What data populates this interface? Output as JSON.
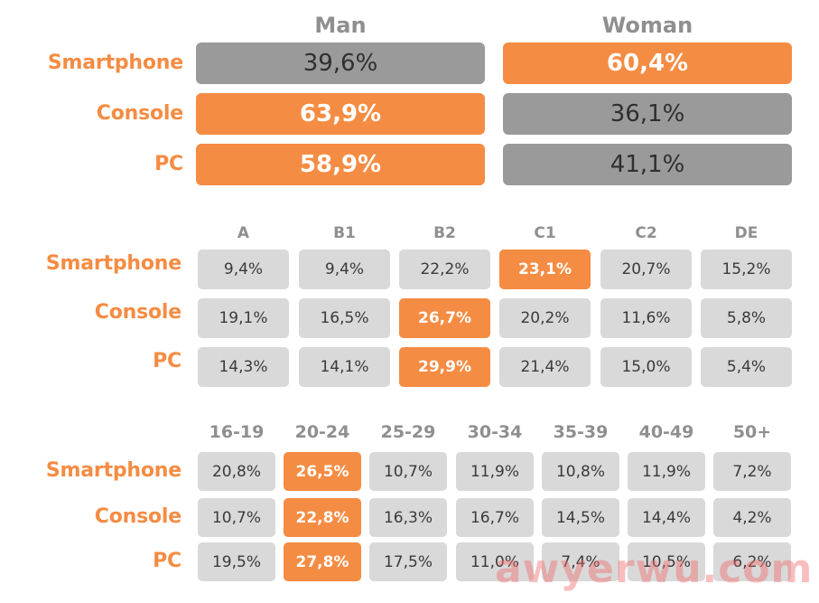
{
  "chart_data": [
    {
      "type": "table",
      "columns": [
        "Man",
        "Woman"
      ],
      "rows": [
        {
          "label": "Smartphone",
          "values": [
            "39,6%",
            "60,4%"
          ],
          "highlight": [
            false,
            true
          ]
        },
        {
          "label": "Console",
          "values": [
            "63,9%",
            "36,1%"
          ],
          "highlight": [
            true,
            false
          ]
        },
        {
          "label": "PC",
          "values": [
            "58,9%",
            "41,1%"
          ],
          "highlight": [
            true,
            false
          ]
        }
      ]
    },
    {
      "type": "table",
      "columns": [
        "A",
        "B1",
        "B2",
        "C1",
        "C2",
        "DE"
      ],
      "rows": [
        {
          "label": "Smartphone",
          "values": [
            "9,4%",
            "9,4%",
            "22,2%",
            "23,1%",
            "20,7%",
            "15,2%"
          ],
          "highlight": [
            false,
            false,
            false,
            true,
            false,
            false
          ]
        },
        {
          "label": "Console",
          "values": [
            "19,1%",
            "16,5%",
            "26,7%",
            "20,2%",
            "11,6%",
            "5,8%"
          ],
          "highlight": [
            false,
            false,
            true,
            false,
            false,
            false
          ]
        },
        {
          "label": "PC",
          "values": [
            "14,3%",
            "14,1%",
            "29,9%",
            "21,4%",
            "15,0%",
            "5,4%"
          ],
          "highlight": [
            false,
            false,
            true,
            false,
            false,
            false
          ]
        }
      ]
    },
    {
      "type": "table",
      "columns": [
        "16-19",
        "20-24",
        "25-29",
        "30-34",
        "35-39",
        "40-49",
        "50+"
      ],
      "rows": [
        {
          "label": "Smartphone",
          "values": [
            "20,8%",
            "26,5%",
            "10,7%",
            "11,9%",
            "10,8%",
            "11,9%",
            "7,2%"
          ],
          "highlight": [
            false,
            true,
            false,
            false,
            false,
            false,
            false
          ]
        },
        {
          "label": "Console",
          "values": [
            "10,7%",
            "22,8%",
            "16,3%",
            "16,7%",
            "14,5%",
            "14,4%",
            "4,2%"
          ],
          "highlight": [
            false,
            true,
            false,
            false,
            false,
            false,
            false
          ]
        },
        {
          "label": "PC",
          "values": [
            "19,5%",
            "27,8%",
            "17,5%",
            "11,0%",
            "7,4%",
            "10,5%",
            "6,2%"
          ],
          "highlight": [
            false,
            true,
            false,
            false,
            false,
            false,
            false
          ]
        }
      ]
    }
  ],
  "colors": {
    "accent": "#f58c43",
    "dark_cell": "#9a9a9a",
    "light_cell": "#d9d9d9",
    "header": "#8f8f8f"
  },
  "watermark": "awyerwu.com"
}
